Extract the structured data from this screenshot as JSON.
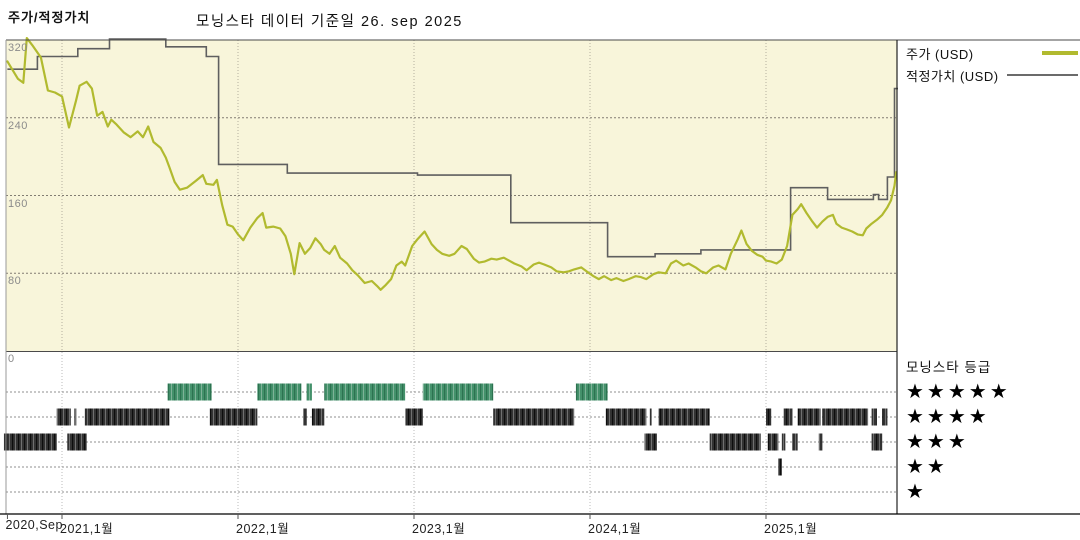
{
  "header": {
    "title_left": "주가/적정가치",
    "title_center": "모닝스타 데이터 기준일 26. sep 2025"
  },
  "legend": {
    "items": [
      {
        "label": "주가 (USD)",
        "color": "#b1ba2f",
        "thickness": 4
      },
      {
        "label": "적정가치 (USD)",
        "color": "#6b6b6b",
        "thickness": 2
      }
    ]
  },
  "rating_legend": {
    "title": "모닝스타 등급",
    "star_char": "★",
    "rows": [
      {
        "stars": 5
      },
      {
        "stars": 4
      },
      {
        "stars": 3
      },
      {
        "stars": 2
      },
      {
        "stars": 1
      }
    ]
  },
  "colors": {
    "plot_bg": "#f8f5da",
    "price": "#b1ba2f",
    "fair_value": "#5f5f5f",
    "rating_green": "#44916b",
    "rating_dark": "#333333",
    "grid_dash": "#827d72",
    "grid_dot": "#b3ae9e",
    "panel_guide": "#8f8f8f",
    "panel_grid": "#bbbbbb"
  },
  "chart_data": {
    "type": "line",
    "title": "주가/적정가치",
    "as_of_label": "모닝스타 데이터 기준일 26. sep 2025",
    "x_axis": {
      "ticks": [
        {
          "label": "2020,Sep",
          "year": 2020.69
        },
        {
          "label": "2021,1월",
          "year": 2021.0
        },
        {
          "label": "2022,1월",
          "year": 2022.0
        },
        {
          "label": "2023,1월",
          "year": 2023.0
        },
        {
          "label": "2024,1월",
          "year": 2024.0
        },
        {
          "label": "2025,1월",
          "year": 2025.0
        }
      ],
      "range": [
        2020.67,
        2025.75
      ]
    },
    "y_axis": {
      "ticks": [
        320,
        240,
        160,
        80,
        0
      ],
      "min": 0,
      "max": 325,
      "grid": true
    },
    "legend_position": "top-right",
    "series": [
      {
        "name": "주가 (USD)",
        "type": "line",
        "color": "#b1ba2f",
        "points": [
          [
            2020.69,
            298
          ],
          [
            2020.75,
            280
          ],
          [
            2020.78,
            276
          ],
          [
            2020.8,
            322
          ],
          [
            2020.83,
            315
          ],
          [
            2020.88,
            302
          ],
          [
            2020.92,
            268
          ],
          [
            2020.96,
            266
          ],
          [
            2021.0,
            262
          ],
          [
            2021.04,
            230
          ],
          [
            2021.08,
            258
          ],
          [
            2021.1,
            273
          ],
          [
            2021.14,
            277
          ],
          [
            2021.17,
            270
          ],
          [
            2021.2,
            242
          ],
          [
            2021.23,
            246
          ],
          [
            2021.26,
            231
          ],
          [
            2021.28,
            238
          ],
          [
            2021.31,
            233
          ],
          [
            2021.35,
            225
          ],
          [
            2021.39,
            220
          ],
          [
            2021.43,
            226
          ],
          [
            2021.46,
            220
          ],
          [
            2021.49,
            231
          ],
          [
            2021.52,
            215
          ],
          [
            2021.56,
            209
          ],
          [
            2021.59,
            199
          ],
          [
            2021.61,
            189
          ],
          [
            2021.64,
            174
          ],
          [
            2021.67,
            166
          ],
          [
            2021.71,
            168
          ],
          [
            2021.76,
            175
          ],
          [
            2021.8,
            181
          ],
          [
            2021.82,
            172
          ],
          [
            2021.86,
            171
          ],
          [
            2021.88,
            176
          ],
          [
            2021.91,
            150
          ],
          [
            2021.94,
            130
          ],
          [
            2021.97,
            128
          ],
          [
            2022.0,
            120
          ],
          [
            2022.03,
            114
          ],
          [
            2022.07,
            127
          ],
          [
            2022.11,
            137
          ],
          [
            2022.14,
            142
          ],
          [
            2022.16,
            127
          ],
          [
            2022.2,
            128
          ],
          [
            2022.24,
            126
          ],
          [
            2022.27,
            118
          ],
          [
            2022.3,
            100
          ],
          [
            2022.32,
            79
          ],
          [
            2022.35,
            111
          ],
          [
            2022.38,
            100
          ],
          [
            2022.41,
            106
          ],
          [
            2022.44,
            116
          ],
          [
            2022.47,
            110
          ],
          [
            2022.49,
            104
          ],
          [
            2022.52,
            100
          ],
          [
            2022.55,
            108
          ],
          [
            2022.58,
            96
          ],
          [
            2022.62,
            90
          ],
          [
            2022.65,
            83
          ],
          [
            2022.68,
            78
          ],
          [
            2022.72,
            70
          ],
          [
            2022.76,
            72
          ],
          [
            2022.79,
            67
          ],
          [
            2022.81,
            63
          ],
          [
            2022.84,
            68
          ],
          [
            2022.87,
            74
          ],
          [
            2022.9,
            88
          ],
          [
            2022.93,
            92
          ],
          [
            2022.95,
            88
          ],
          [
            2022.99,
            108
          ],
          [
            2023.02,
            115
          ],
          [
            2023.06,
            123
          ],
          [
            2023.1,
            110
          ],
          [
            2023.13,
            104
          ],
          [
            2023.16,
            100
          ],
          [
            2023.2,
            98
          ],
          [
            2023.23,
            100
          ],
          [
            2023.27,
            108
          ],
          [
            2023.3,
            105
          ],
          [
            2023.34,
            95
          ],
          [
            2023.37,
            91
          ],
          [
            2023.4,
            92
          ],
          [
            2023.44,
            95
          ],
          [
            2023.47,
            94
          ],
          [
            2023.51,
            96
          ],
          [
            2023.54,
            93
          ],
          [
            2023.57,
            90
          ],
          [
            2023.61,
            87
          ],
          [
            2023.64,
            83
          ],
          [
            2023.68,
            89
          ],
          [
            2023.71,
            91
          ],
          [
            2023.74,
            89
          ],
          [
            2023.78,
            86
          ],
          [
            2023.81,
            82
          ],
          [
            2023.85,
            81
          ],
          [
            2023.88,
            82
          ],
          [
            2023.91,
            84
          ],
          [
            2023.95,
            86
          ],
          [
            2023.98,
            82
          ],
          [
            2024.02,
            77
          ],
          [
            2024.05,
            74
          ],
          [
            2024.08,
            77
          ],
          [
            2024.12,
            73
          ],
          [
            2024.15,
            75
          ],
          [
            2024.19,
            72
          ],
          [
            2024.22,
            74
          ],
          [
            2024.26,
            77
          ],
          [
            2024.29,
            76
          ],
          [
            2024.32,
            74
          ],
          [
            2024.36,
            79
          ],
          [
            2024.39,
            81
          ],
          [
            2024.43,
            80
          ],
          [
            2024.46,
            90
          ],
          [
            2024.49,
            93
          ],
          [
            2024.53,
            88
          ],
          [
            2024.56,
            90
          ],
          [
            2024.6,
            86
          ],
          [
            2024.63,
            82
          ],
          [
            2024.66,
            80
          ],
          [
            2024.7,
            86
          ],
          [
            2024.73,
            88
          ],
          [
            2024.77,
            84
          ],
          [
            2024.8,
            100
          ],
          [
            2024.84,
            115
          ],
          [
            2024.86,
            124
          ],
          [
            2024.89,
            110
          ],
          [
            2024.92,
            103
          ],
          [
            2024.95,
            99
          ],
          [
            2024.98,
            97
          ],
          [
            2025.0,
            93
          ],
          [
            2025.03,
            92
          ],
          [
            2025.06,
            90
          ],
          [
            2025.09,
            94
          ],
          [
            2025.12,
            108
          ],
          [
            2025.15,
            140
          ],
          [
            2025.18,
            146
          ],
          [
            2025.2,
            151
          ],
          [
            2025.23,
            142
          ],
          [
            2025.26,
            134
          ],
          [
            2025.29,
            127
          ],
          [
            2025.32,
            133
          ],
          [
            2025.35,
            138
          ],
          [
            2025.38,
            140
          ],
          [
            2025.4,
            131
          ],
          [
            2025.43,
            127
          ],
          [
            2025.46,
            125
          ],
          [
            2025.49,
            123
          ],
          [
            2025.52,
            120
          ],
          [
            2025.55,
            119
          ],
          [
            2025.57,
            126
          ],
          [
            2025.6,
            131
          ],
          [
            2025.63,
            135
          ],
          [
            2025.66,
            140
          ],
          [
            2025.69,
            148
          ],
          [
            2025.71,
            155
          ],
          [
            2025.73,
            170
          ],
          [
            2025.74,
            184
          ]
        ]
      },
      {
        "name": "적정가치 (USD)",
        "type": "step",
        "color": "#5f5f5f",
        "points": [
          [
            2020.69,
            290
          ],
          [
            2020.86,
            303
          ],
          [
            2021.09,
            311
          ],
          [
            2021.27,
            321
          ],
          [
            2021.59,
            313
          ],
          [
            2021.82,
            303
          ],
          [
            2021.89,
            192
          ],
          [
            2022.28,
            183
          ],
          [
            2023.02,
            181
          ],
          [
            2023.55,
            132
          ],
          [
            2024.1,
            97
          ],
          [
            2024.37,
            100
          ],
          [
            2024.63,
            104
          ],
          [
            2025.14,
            168
          ],
          [
            2025.35,
            156
          ],
          [
            2025.61,
            161
          ],
          [
            2025.64,
            156
          ],
          [
            2025.69,
            179
          ],
          [
            2025.73,
            270
          ],
          [
            2025.75,
            270
          ]
        ]
      }
    ],
    "rating_timeline": {
      "title": "모닝스타 등급",
      "rows": [
        {
          "stars": 5,
          "color": "#44916b",
          "segments": [
            [
              2021.6,
              2021.85
            ],
            [
              2022.11,
              2022.36
            ],
            [
              2022.39,
              2022.42
            ],
            [
              2022.49,
              2022.95
            ],
            [
              2023.05,
              2023.45
            ],
            [
              2023.92,
              2024.1
            ]
          ]
        },
        {
          "stars": 4,
          "color": "#333333",
          "segments": [
            [
              2020.97,
              2021.05
            ],
            [
              2021.07,
              2021.08
            ],
            [
              2021.13,
              2021.61
            ],
            [
              2021.84,
              2022.11
            ],
            [
              2022.37,
              2022.39
            ],
            [
              2022.42,
              2022.49
            ],
            [
              2022.95,
              2023.05
            ],
            [
              2023.45,
              2023.91
            ],
            [
              2024.09,
              2024.32
            ],
            [
              2024.34,
              2024.35
            ],
            [
              2024.39,
              2024.68
            ],
            [
              2025.0,
              2025.03
            ],
            [
              2025.1,
              2025.15
            ],
            [
              2025.18,
              2025.31
            ],
            [
              2025.32,
              2025.58
            ],
            [
              2025.6,
              2025.63
            ],
            [
              2025.66,
              2025.69
            ]
          ]
        },
        {
          "stars": 3,
          "color": "#333333",
          "segments": [
            [
              2020.67,
              2020.97
            ],
            [
              2021.03,
              2021.14
            ],
            [
              2024.31,
              2024.38
            ],
            [
              2024.68,
              2024.97
            ],
            [
              2025.01,
              2025.07
            ],
            [
              2025.09,
              2025.11
            ],
            [
              2025.15,
              2025.18
            ],
            [
              2025.3,
              2025.32
            ],
            [
              2025.6,
              2025.66
            ]
          ]
        },
        {
          "stars": 2,
          "color": "#333333",
          "segments": [
            [
              2025.07,
              2025.09
            ]
          ]
        },
        {
          "stars": 1,
          "color": "#333333",
          "segments": []
        }
      ]
    }
  }
}
